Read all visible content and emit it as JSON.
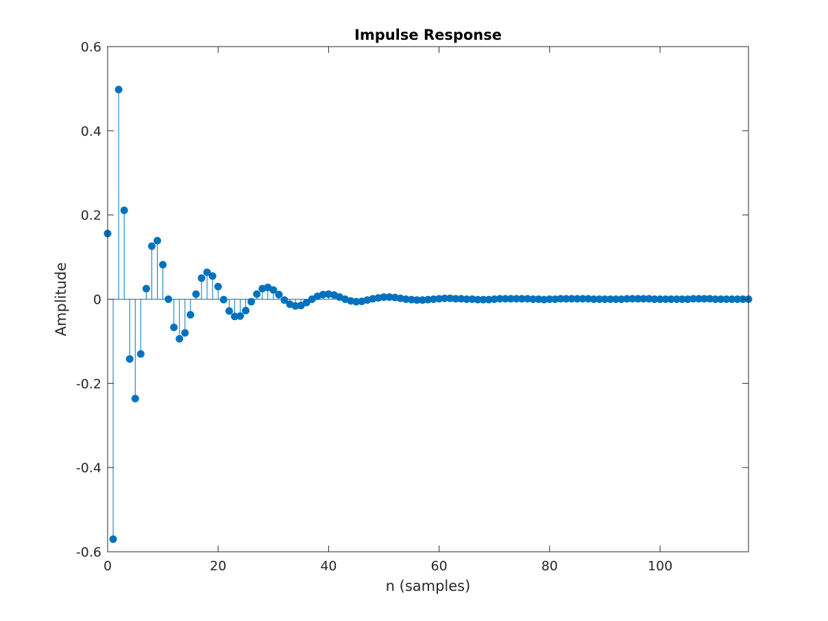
{
  "chart_data": {
    "type": "stem",
    "title": "Impulse Response",
    "xlabel": "n (samples)",
    "ylabel": "Amplitude",
    "xlim": [
      0,
      116
    ],
    "ylim": [
      -0.6,
      0.6
    ],
    "xticks": [
      0,
      20,
      40,
      60,
      80,
      100
    ],
    "yticks": [
      -0.6,
      -0.4,
      -0.2,
      0,
      0.2,
      0.4,
      0.6
    ],
    "xtick_labels": [
      "0",
      "20",
      "40",
      "60",
      "80",
      "100"
    ],
    "ytick_labels": [
      "-0.6",
      "-0.4",
      "-0.2",
      "0",
      "0.2",
      "0.4",
      "0.6"
    ],
    "grid": false,
    "color": "#0072BD",
    "series": [
      {
        "x": [
          0,
          1,
          2,
          3,
          4,
          5,
          6,
          7,
          8,
          9,
          10,
          11,
          12,
          13,
          14,
          15,
          16,
          17,
          18,
          19,
          20,
          21,
          22,
          23,
          24,
          25,
          26,
          27,
          28,
          29,
          30,
          31,
          32,
          33,
          34,
          35,
          36,
          37,
          38,
          39,
          40,
          41,
          42,
          43,
          44,
          45,
          46,
          47,
          48,
          49,
          50,
          51,
          52,
          53,
          54,
          55,
          56,
          57,
          58,
          59,
          60,
          61,
          62,
          63,
          64,
          65,
          66,
          67,
          68,
          69,
          70,
          71,
          72,
          73,
          74,
          75,
          76,
          77,
          78,
          79,
          80,
          81,
          82,
          83,
          84,
          85,
          86,
          87,
          88,
          89,
          90,
          91,
          92,
          93,
          94,
          95,
          96,
          97,
          98,
          99,
          100,
          101,
          102,
          103,
          104,
          105,
          106,
          107,
          108,
          109,
          110,
          111,
          112,
          113,
          114,
          115,
          116
        ],
        "values": [
          0.156,
          -0.57,
          0.498,
          0.211,
          -0.142,
          -0.236,
          -0.13,
          0.025,
          0.126,
          0.139,
          0.082,
          0.0,
          -0.067,
          -0.094,
          -0.08,
          -0.037,
          0.012,
          0.05,
          0.064,
          0.055,
          0.03,
          -0.001,
          -0.028,
          -0.041,
          -0.04,
          -0.027,
          -0.006,
          0.012,
          0.025,
          0.028,
          0.022,
          0.011,
          -0.002,
          -0.012,
          -0.016,
          -0.015,
          -0.008,
          0.0,
          0.007,
          0.011,
          0.012,
          0.01,
          0.005,
          0.0,
          -0.004,
          -0.006,
          -0.005,
          -0.002,
          0.001,
          0.003,
          0.005,
          0.005,
          0.004,
          0.002,
          0.0,
          -0.001,
          -0.002,
          -0.002,
          -0.001,
          0.0,
          0.001,
          0.002,
          0.002,
          0.001,
          0.001,
          0.0,
          0.0,
          -0.001,
          -0.001,
          -0.001,
          0.0,
          0.001,
          0.001,
          0.001,
          0.001,
          0.001,
          0.001,
          0.0,
          0.0,
          -0.001,
          0.0,
          0.0,
          0.001,
          0.001,
          0.001,
          0.001,
          0.001,
          0.001,
          0.0,
          0.0,
          0.0,
          0.0,
          0.0,
          0.0,
          0.001,
          0.001,
          0.001,
          0.001,
          0.001,
          0.0,
          0.0,
          0.0,
          0.0,
          0.0,
          0.0,
          0.0,
          0.001,
          0.001,
          0.001,
          0.001,
          0.0,
          0.0,
          0.0,
          0.0,
          0.0,
          0.0,
          0.0
        ]
      }
    ]
  }
}
